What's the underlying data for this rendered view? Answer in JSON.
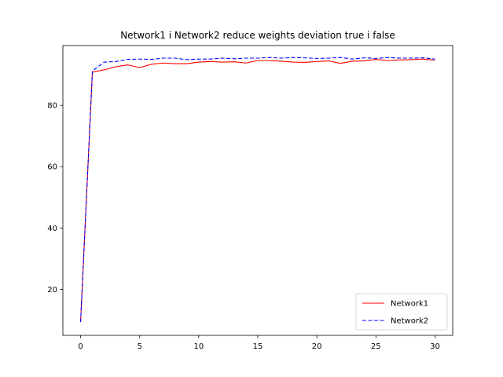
{
  "chart_data": {
    "type": "line",
    "title": "Network1 i Network2 reduce weights deviation true i false",
    "xlabel": "",
    "ylabel": "",
    "xlim": [
      -1.5,
      31.5
    ],
    "ylim": [
      5.0,
      99.5
    ],
    "xticks": [
      0,
      5,
      10,
      15,
      20,
      25,
      30
    ],
    "yticks": [
      20,
      40,
      60,
      80
    ],
    "grid": false,
    "legend_position": "lower-right",
    "x": [
      0,
      1,
      2,
      3,
      4,
      5,
      6,
      7,
      8,
      9,
      10,
      11,
      12,
      13,
      14,
      15,
      16,
      17,
      18,
      19,
      20,
      21,
      22,
      23,
      24,
      25,
      26,
      27,
      28,
      29,
      30
    ],
    "series": [
      {
        "name": "Network1",
        "color": "#ff0000",
        "linestyle": "solid",
        "values": [
          9.5,
          90.8,
          91.6,
          92.6,
          93.2,
          92.3,
          93.4,
          93.8,
          93.6,
          93.6,
          94.1,
          94.3,
          94.1,
          94.2,
          93.8,
          94.6,
          94.6,
          94.4,
          94.1,
          94.0,
          94.3,
          94.5,
          93.7,
          94.4,
          94.5,
          95.0,
          94.6,
          94.8,
          94.9,
          95.1,
          94.7
        ]
      },
      {
        "name": "Network2",
        "color": "#0000ff",
        "linestyle": "dashed",
        "values": [
          9.3,
          91.2,
          94.1,
          94.3,
          95.0,
          95.1,
          95.0,
          95.4,
          95.4,
          94.9,
          95.1,
          95.1,
          95.4,
          95.2,
          95.4,
          95.4,
          95.6,
          95.4,
          95.6,
          95.5,
          95.3,
          95.4,
          95.6,
          95.1,
          95.5,
          95.3,
          95.6,
          95.4,
          95.4,
          95.5,
          95.1
        ]
      }
    ]
  }
}
